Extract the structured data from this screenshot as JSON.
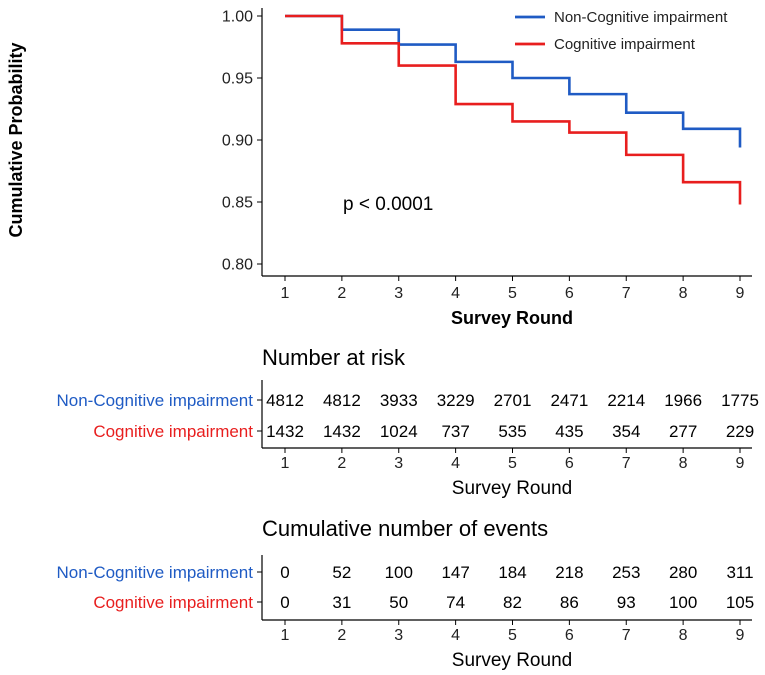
{
  "chart_data": {
    "type": "line",
    "subtype": "kaplan-meier step plot with risk tables",
    "ylabel": "Cumulative Probability",
    "xlabel": "Survey Round",
    "ylim": [
      0.8,
      1.0
    ],
    "yticks": [
      "0.80",
      "0.85",
      "0.90",
      "0.95",
      "1.00"
    ],
    "xlim": [
      1,
      9
    ],
    "xticks": [
      "1",
      "2",
      "3",
      "4",
      "5",
      "6",
      "7",
      "8",
      "9"
    ],
    "annotation": "p < 0.0001",
    "legend_position": "top-right",
    "series": [
      {
        "name": "Non-Cognitive impairment",
        "color": "#1F5BC4",
        "steps": [
          {
            "x": 1,
            "y": 1.0
          },
          {
            "x": 2,
            "y": 0.989
          },
          {
            "x": 3,
            "y": 0.977
          },
          {
            "x": 4,
            "y": 0.963
          },
          {
            "x": 5,
            "y": 0.95
          },
          {
            "x": 6,
            "y": 0.937
          },
          {
            "x": 7,
            "y": 0.922
          },
          {
            "x": 8,
            "y": 0.909
          },
          {
            "x": 9,
            "y": 0.894
          }
        ]
      },
      {
        "name": "Cognitive impairment",
        "color": "#E81E1E",
        "steps": [
          {
            "x": 1,
            "y": 1.0
          },
          {
            "x": 2,
            "y": 0.978
          },
          {
            "x": 3,
            "y": 0.96
          },
          {
            "x": 4,
            "y": 0.929
          },
          {
            "x": 5,
            "y": 0.915
          },
          {
            "x": 6,
            "y": 0.906
          },
          {
            "x": 7,
            "y": 0.888
          },
          {
            "x": 8,
            "y": 0.866
          },
          {
            "x": 9,
            "y": 0.848
          }
        ]
      }
    ],
    "tables": [
      {
        "title": "Number at risk",
        "xlabel": "Survey Round",
        "rows": [
          {
            "name": "Non-Cognitive impairment",
            "color": "#1F5BC4",
            "values": [
              "4812",
              "4812",
              "3933",
              "3229",
              "2701",
              "2471",
              "2214",
              "1966",
              "1775"
            ]
          },
          {
            "name": "Cognitive impairment",
            "color": "#E81E1E",
            "values": [
              "1432",
              "1432",
              "1024",
              "737",
              "535",
              "435",
              "354",
              "277",
              "229"
            ]
          }
        ]
      },
      {
        "title": "Cumulative number of events",
        "xlabel": "Survey Round",
        "rows": [
          {
            "name": "Non-Cognitive impairment",
            "color": "#1F5BC4",
            "values": [
              "0",
              "52",
              "100",
              "147",
              "184",
              "218",
              "253",
              "280",
              "311"
            ]
          },
          {
            "name": "Cognitive impairment",
            "color": "#E81E1E",
            "values": [
              "0",
              "31",
              "50",
              "74",
              "82",
              "86",
              "93",
              "100",
              "105"
            ]
          }
        ]
      }
    ]
  }
}
